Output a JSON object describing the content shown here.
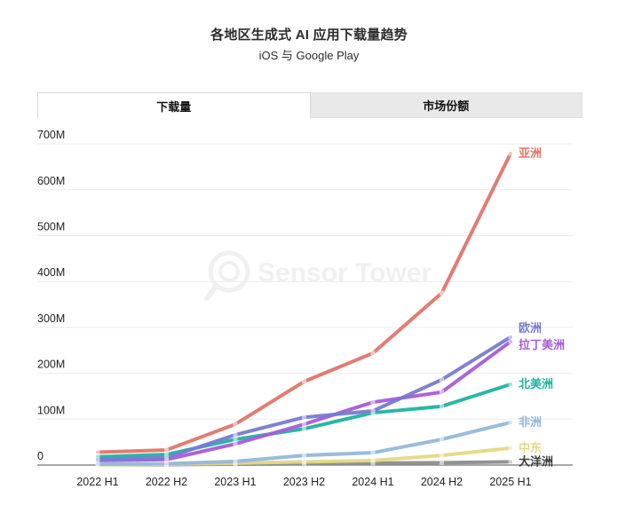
{
  "page": {
    "title": "各地区生成式 AI 应用下载量趋势",
    "subtitle": "iOS 与 Google Play"
  },
  "tabs": [
    {
      "label": "下载量",
      "active": true
    },
    {
      "label": "市场份额",
      "active": false
    }
  ],
  "watermark": {
    "text": "Sensor Tower"
  },
  "chart_data": {
    "type": "line",
    "title": "各地区生成式 AI 应用下载量趋势",
    "subtitle": "iOS 与 Google Play",
    "xlabel": "",
    "ylabel": "",
    "unit": "M",
    "ylim": [
      0,
      700
    ],
    "grid": true,
    "legend_position": "right-of-line-end",
    "x_labels": [
      "2022 H1",
      "2022 H2",
      "2023 H1",
      "2023 H2",
      "2024 H1",
      "2024 H2",
      "2025 H1"
    ],
    "y_ticks": [
      {
        "value": 0,
        "label": "0"
      },
      {
        "value": 100,
        "label": "100M"
      },
      {
        "value": 200,
        "label": "200M"
      },
      {
        "value": 300,
        "label": "300M"
      },
      {
        "value": 400,
        "label": "400M"
      },
      {
        "value": 500,
        "label": "500M"
      },
      {
        "value": 600,
        "label": "600M"
      },
      {
        "value": 700,
        "label": "700M"
      }
    ],
    "series": [
      {
        "id": "asia",
        "name": "亚洲",
        "color": "#e0756a",
        "label_color": "#e0756a",
        "label_dy": 0,
        "values": [
          28,
          33,
          89,
          182,
          244,
          375,
          679
        ]
      },
      {
        "id": "europe",
        "name": "欧洲",
        "color": "#767bd2",
        "label_color": "#767bd2",
        "label_dy": -10,
        "values": [
          13,
          16,
          66,
          104,
          118,
          186,
          279
        ]
      },
      {
        "id": "latin-america",
        "name": "拉丁美洲",
        "color": "#a95bd6",
        "label_color": "#a95bd6",
        "label_dy": 4,
        "values": [
          10,
          12,
          46,
          89,
          137,
          159,
          269
        ]
      },
      {
        "id": "north-america",
        "name": "北美洲",
        "color": "#1db3a0",
        "label_color": "#1db3a0",
        "label_dy": 0,
        "values": [
          18,
          23,
          56,
          79,
          114,
          128,
          176
        ]
      },
      {
        "id": "africa",
        "name": "非洲",
        "color": "#92b8da",
        "label_color": "#92b8da",
        "label_dy": 0,
        "values": [
          2,
          3,
          8,
          21,
          27,
          56,
          93
        ]
      },
      {
        "id": "middle-east",
        "name": "中东",
        "color": "#e5d886",
        "label_color": "#e5d886",
        "label_dy": 0,
        "values": [
          1,
          2,
          4,
          7,
          10,
          21,
          37
        ]
      },
      {
        "id": "oceania",
        "name": "大洋洲",
        "color": "#8c8c8c",
        "label_color": "#3c3c3c",
        "label_dy": 0,
        "values": [
          1,
          1,
          2,
          3,
          4,
          5,
          7
        ]
      }
    ]
  }
}
